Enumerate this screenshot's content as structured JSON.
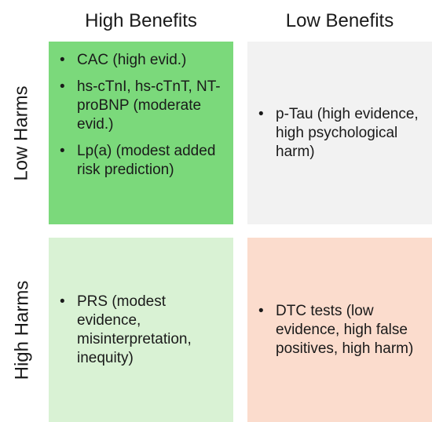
{
  "columns": {
    "high_benefits": "High Benefits",
    "low_benefits": "Low Benefits"
  },
  "rows": {
    "low_harms": "Low Harms",
    "high_harms": "High Harms"
  },
  "cells": {
    "high_benefits_low_harms": {
      "color": "#7bd97b",
      "items": [
        "CAC (high evid.)",
        "hs-cTnI, hs-cTnT, NT-proBNP (moderate evid.)",
        "Lp(a) (modest added risk prediction)"
      ]
    },
    "low_benefits_low_harms": {
      "color": "#f2f2f2",
      "items": [
        "p-Tau (high evidence, high psychological harm)"
      ]
    },
    "high_benefits_high_harms": {
      "color": "#d9f2d4",
      "items": [
        "PRS (modest evidence, misinterpretation, inequity)"
      ]
    },
    "low_benefits_high_harms": {
      "color": "#fbdccd",
      "items": [
        "DTC tests (low evidence, high false positives, high harm)"
      ]
    }
  }
}
